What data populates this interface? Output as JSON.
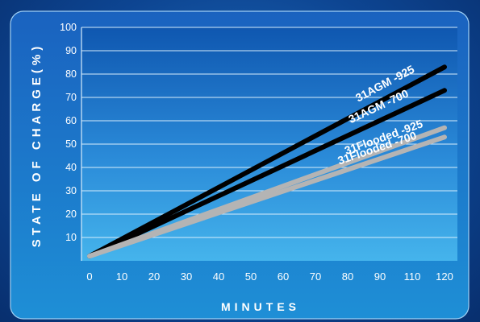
{
  "chart_data": {
    "type": "line",
    "title": "",
    "xlabel": "MINUTES",
    "ylabel": "STATE OF CHARGE(%)",
    "x_ticks": [
      "0",
      "10",
      "20",
      "30",
      "40",
      "50",
      "60",
      "70",
      "80",
      "90",
      "110",
      "120"
    ],
    "y_ticks": [
      "10",
      "20",
      "30",
      "40",
      "50",
      "60",
      "70",
      "80",
      "90",
      "100"
    ],
    "ylim": [
      0,
      100
    ],
    "grid": true,
    "series": [
      {
        "name": "31AGM -925",
        "x": [
          0,
          120
        ],
        "y": [
          2,
          83
        ],
        "color": "#000000"
      },
      {
        "name": "31AGM -700",
        "x": [
          0,
          120
        ],
        "y": [
          2,
          73
        ],
        "color": "#000000"
      },
      {
        "name": "31Flooded -925",
        "x": [
          0,
          120
        ],
        "y": [
          2,
          57
        ],
        "color": "#b4b4b4"
      },
      {
        "name": "31Flooded -700",
        "x": [
          0,
          120
        ],
        "y": [
          2,
          53
        ],
        "color": "#b4b4b4"
      }
    ]
  }
}
